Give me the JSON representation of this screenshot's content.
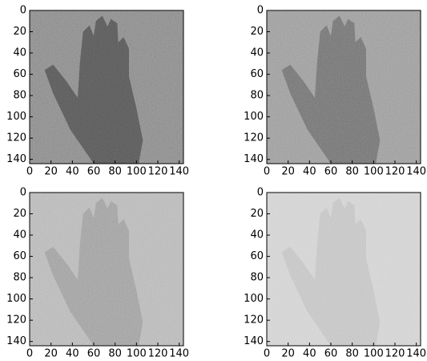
{
  "chart_data": [
    {
      "type": "image",
      "colors": [
        "#8a8a8a",
        "#5a5a5a"
      ],
      "xlim": [
        0,
        144
      ],
      "ylim": [
        144,
        0
      ],
      "xticks": [
        0,
        20,
        40,
        60,
        80,
        100,
        120,
        140
      ],
      "yticks": [
        0,
        20,
        40,
        60,
        80,
        100,
        120,
        140
      ]
    },
    {
      "type": "image",
      "colors": [
        "#9c9c9c",
        "#747474"
      ],
      "xlim": [
        0,
        144
      ],
      "ylim": [
        144,
        0
      ],
      "xticks": [
        0,
        20,
        40,
        60,
        80,
        100,
        120,
        140
      ],
      "yticks": [
        0,
        20,
        40,
        60,
        80,
        100,
        120,
        140
      ]
    },
    {
      "type": "image",
      "colors": [
        "#b8b8b8",
        "#a0a0a0"
      ],
      "xlim": [
        0,
        144
      ],
      "ylim": [
        144,
        0
      ],
      "xticks": [
        0,
        20,
        40,
        60,
        80,
        100,
        120,
        140
      ],
      "yticks": [
        0,
        20,
        40,
        60,
        80,
        100,
        120,
        140
      ]
    },
    {
      "type": "image",
      "colors": [
        "#d2d2d2",
        "#c4c4c4"
      ],
      "xlim": [
        0,
        144
      ],
      "ylim": [
        144,
        0
      ],
      "xticks": [
        0,
        20,
        40,
        60,
        80,
        100,
        120,
        140
      ],
      "yticks": [
        0,
        20,
        40,
        60,
        80,
        100,
        120,
        140
      ]
    }
  ]
}
